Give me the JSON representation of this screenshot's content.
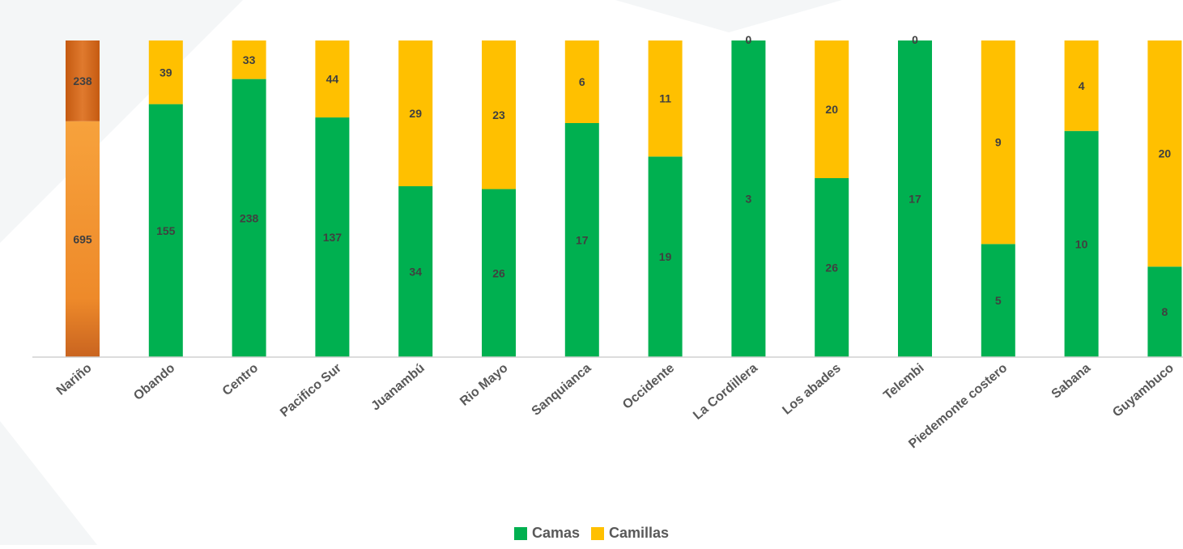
{
  "chart_data": {
    "type": "bar",
    "stacked": true,
    "normalized": true,
    "categories": [
      "Nariño",
      "Obando",
      "Centro",
      "Pacifico Sur",
      "Juanambú",
      "Rio Mayo",
      "Sanquianca",
      "Occidente",
      "La Cordillera",
      "Los abades",
      "Telembi",
      "Piedemonte costero",
      "Sabana",
      "Guyambuco"
    ],
    "series": [
      {
        "name": "Camas",
        "color": "#00B050",
        "values": [
          695,
          155,
          238,
          137,
          34,
          26,
          17,
          19,
          3,
          26,
          17,
          5,
          10,
          8
        ]
      },
      {
        "name": "Camillas",
        "color": "#FFC000",
        "values": [
          238,
          39,
          33,
          44,
          29,
          23,
          6,
          11,
          0,
          20,
          0,
          9,
          4,
          20
        ]
      }
    ],
    "highlight": {
      "index": 0,
      "color_top": "#D96A1E",
      "color_bottom": "#F28C28"
    },
    "legend_position": "bottom",
    "grid": false
  }
}
